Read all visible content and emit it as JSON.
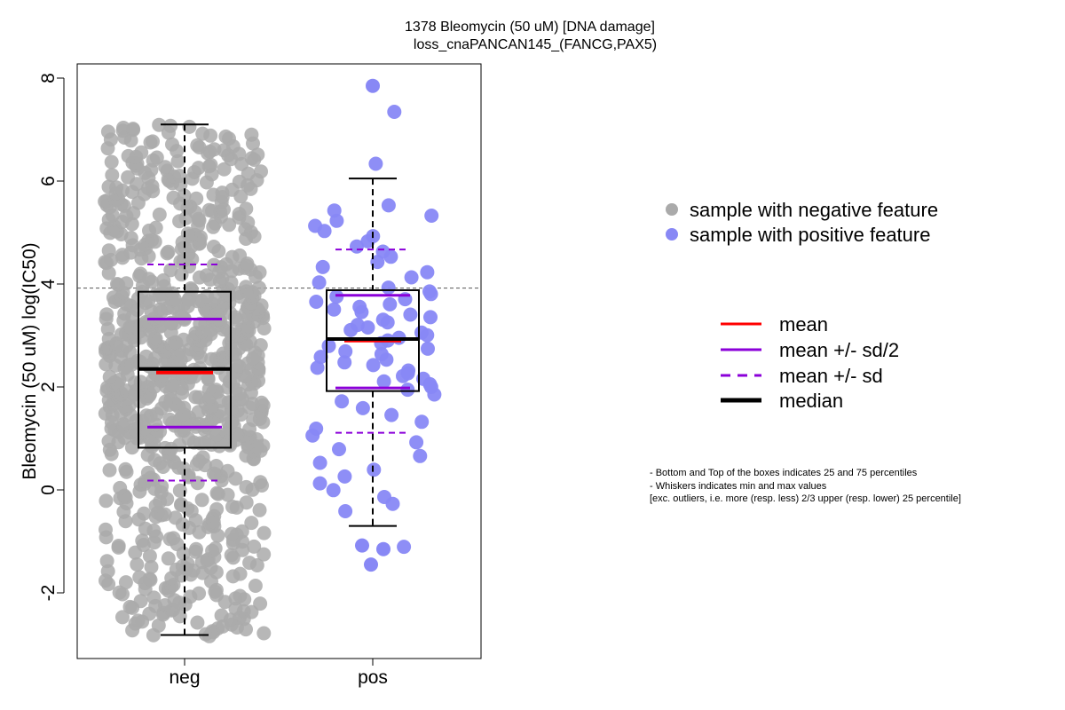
{
  "title": {
    "line1": "1378 Bleomycin (50 uM) [DNA damage]",
    "line2": "loss_cnaPANCAN145_(FANCG,PAX5)"
  },
  "colors": {
    "negative_points": "#aaaaaa",
    "positive_points": "#8888f5",
    "mean": "#ff0000",
    "sd_half": "#8b00d9",
    "sd": "#8b00d9",
    "median": "#000000",
    "threshold_line": "#555555"
  },
  "legend_points": {
    "negative": "sample with negative feature",
    "positive": "sample with positive feature"
  },
  "legend_lines": {
    "mean": "mean",
    "sd_half": "mean +/- sd/2",
    "sd": "mean +/- sd",
    "median": "median"
  },
  "footnote": {
    "line1": "- Bottom and Top of the boxes indicates 25 and 75 percentiles",
    "line2": "- Whiskers indicates min and max values",
    "line3": "[exc. outliers, i.e. more (resp. less) 2/3 upper (resp. lower) 25 percentile]"
  },
  "chart_data": {
    "type": "box",
    "ylabel": "Bleomycin (50 uM) log(IC50)",
    "ylim": [
      -3.2,
      8.3
    ],
    "yticks": [
      -2,
      0,
      2,
      4,
      6,
      8
    ],
    "categories": [
      "neg",
      "pos"
    ],
    "threshold_y": 3.92,
    "grid": false,
    "legend_position": "right",
    "groups": [
      {
        "label": "neg",
        "n_points": 880,
        "q1": 0.82,
        "median": 2.35,
        "q3": 3.85,
        "whisker_low": -2.82,
        "whisker_high": 7.1,
        "mean": 2.28,
        "mean_minus_half_sd": 1.22,
        "mean_plus_half_sd": 3.32,
        "mean_minus_sd": 0.18,
        "mean_plus_sd": 4.38,
        "min": -2.85,
        "max": 7.1
      },
      {
        "label": "pos",
        "n_points": 80,
        "q1": 1.92,
        "median": 2.93,
        "q3": 3.88,
        "whisker_low": -0.7,
        "whisker_high": 6.05,
        "mean": 2.9,
        "mean_minus_half_sd": 1.98,
        "mean_plus_half_sd": 3.78,
        "mean_minus_sd": 1.11,
        "mean_plus_sd": 4.67,
        "outliers": [
          7.85,
          -1.08,
          -1.15,
          -1.45
        ],
        "min": -1.45,
        "max": 7.85
      }
    ]
  }
}
